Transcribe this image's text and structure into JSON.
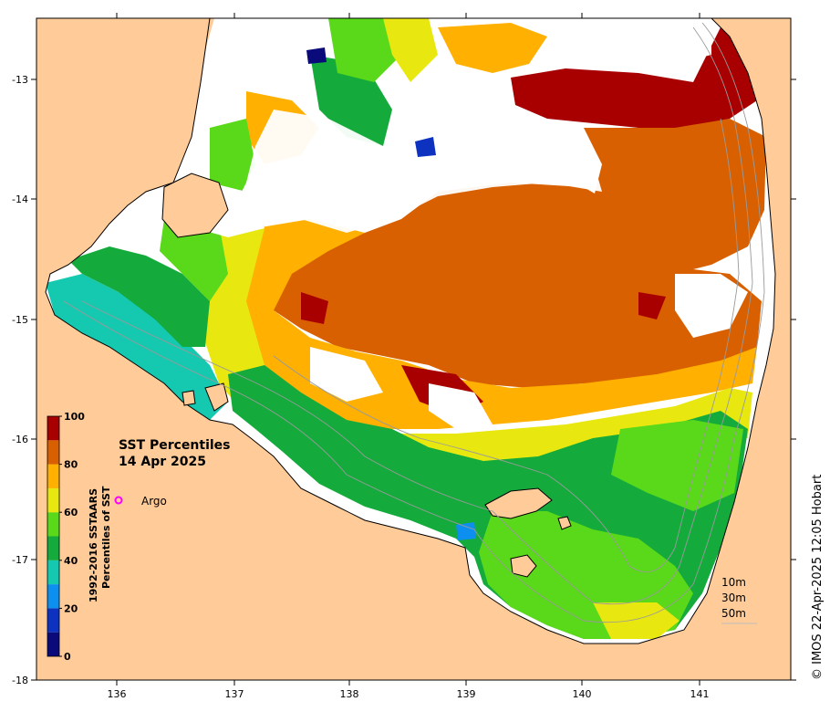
{
  "title_line1": "SST Percentiles",
  "title_line2": "14 Apr 2025",
  "colorbar": {
    "label_line1": "1992-2016 SSTAARS",
    "label_line2": "Percentiles of SST",
    "ticks": [
      "0",
      "20",
      "40",
      "60",
      "80",
      "100"
    ],
    "colors": [
      "#0b0a7a",
      "#0e32c0",
      "#0d8ff0",
      "#15c8b0",
      "#14ab3c",
      "#5ad81a",
      "#e8e810",
      "#ffb000",
      "#d86000",
      "#a80000"
    ]
  },
  "argo_label": "Argo",
  "argo_color": "#ff00ff",
  "depth_legend": [
    "10m",
    "30m",
    "50m"
  ],
  "credit": "© IMOS 22-Apr-2025 12:05 Hobart",
  "map": {
    "lon_ticks": [
      "136",
      "137",
      "138",
      "139",
      "140",
      "141"
    ],
    "lat_ticks": [
      "-13",
      "-14",
      "-15",
      "-16",
      "-17",
      "-18"
    ],
    "land_color": "#ffcb99",
    "nodata_color": "#ffffff"
  }
}
